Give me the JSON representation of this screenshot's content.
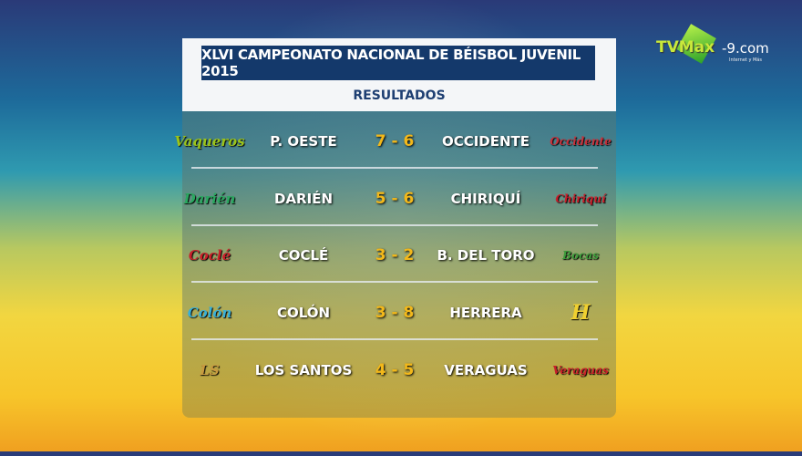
{
  "title": "XLVI CAMPEONATO NACIONAL DE BÉISBOL JUVENIL 2015",
  "subtitle": "RESULTADOS",
  "brand": {
    "name": "TVMax",
    "suffix": "-9.com",
    "tagline": "Internet y Más"
  },
  "games": [
    {
      "home": "P. OESTE",
      "score": "7 - 6",
      "away": "OCCIDENTE",
      "home_logo": "Vaqueros",
      "away_logo": "Occidente",
      "home_color": "#9bc31a",
      "away_color": "#c8303a"
    },
    {
      "home": "DARIÉN",
      "score": "5 - 6",
      "away": "CHIRIQUÍ",
      "home_logo": "Darién",
      "away_logo": "Chiriquí",
      "home_color": "#2aa860",
      "away_color": "#c81e2a"
    },
    {
      "home": "COCLÉ",
      "score": "3 - 2",
      "away": "B. DEL TORO",
      "home_logo": "Coclé",
      "away_logo": "Bocas",
      "home_color": "#c8202a",
      "away_color": "#3c9a3a"
    },
    {
      "home": "COLÓN",
      "score": "3 - 8",
      "away": "HERRERA",
      "home_logo": "Colón",
      "away_logo": "H",
      "home_color": "#38b0d8",
      "away_color": "#f0d030"
    },
    {
      "home": "LOS SANTOS",
      "score": "4 - 5",
      "away": "VERAGUAS",
      "home_logo": "LS",
      "away_logo": "Veraguas",
      "home_color": "#c89a40",
      "away_color": "#c8202a"
    }
  ]
}
